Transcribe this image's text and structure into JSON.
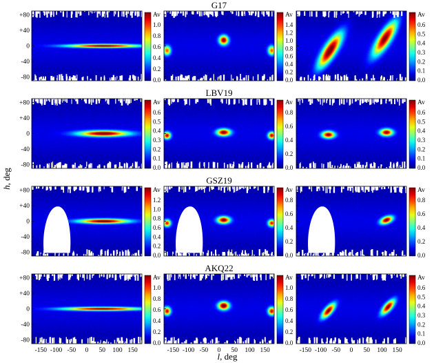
{
  "figure": {
    "ylabel_italic": "h",
    "ylabel_suffix": ", deg",
    "xlabel_italic": "l",
    "xlabel_suffix": ", deg",
    "colorbar_label": "Av"
  },
  "chart_data": [
    {
      "type": "heatmap",
      "title": "G17",
      "xlabel": "l, deg",
      "ylabel": "h, deg",
      "x_ticks": [
        -150,
        -100,
        -50,
        0,
        50,
        100,
        150
      ],
      "y_ticks": [
        80,
        40,
        0,
        -40,
        -80
      ],
      "y_tick_labels": [
        "+80",
        "+40",
        "0",
        "-40",
        "-80"
      ],
      "xlim": [
        -180,
        180
      ],
      "ylim": [
        -90,
        90
      ],
      "columns": 3,
      "colorbars": [
        {
          "label": "Av",
          "min": 0.0,
          "max": 1.0,
          "ticks": [
            "0.0",
            "0.2",
            "0.4",
            "0.6",
            "0.8",
            "1.0"
          ]
        },
        {
          "label": "Av",
          "min": 0.0,
          "max": 1.4,
          "ticks": [
            "0.0",
            "0.2",
            "0.4",
            "0.6",
            "0.8",
            "1.0",
            "1.2",
            "1.4"
          ]
        },
        {
          "label": "Av",
          "min": 0.0,
          "max": 0.6,
          "ticks": [
            "0.0",
            "0.1",
            "0.2",
            "0.3",
            "0.4",
            "0.5",
            "0.6"
          ]
        }
      ],
      "features": [
        [
          {
            "l": 55,
            "b": 0,
            "sl": 80,
            "sb": 3,
            "rot": 0,
            "amp": 0.95
          }
        ],
        [
          {
            "l": 15,
            "b": 15,
            "sl": 10,
            "sb": 8,
            "rot": 0,
            "amp": 1.3
          },
          {
            "l": -170,
            "b": -12,
            "sl": 8,
            "sb": 8,
            "rot": 0,
            "amp": 1.0
          },
          {
            "l": 172,
            "b": -12,
            "sl": 8,
            "sb": 8,
            "rot": 0,
            "amp": 1.0
          }
        ],
        [
          {
            "l": -70,
            "b": -12,
            "sl": 38,
            "sb": 12,
            "rot": 50,
            "amp": 0.58
          },
          {
            "l": 110,
            "b": 20,
            "sl": 38,
            "sb": 12,
            "rot": 50,
            "amp": 0.55
          }
        ]
      ]
    },
    {
      "type": "heatmap",
      "title": "LBV19",
      "xlabel": "l, deg",
      "ylabel": "h, deg",
      "x_ticks": [
        -150,
        -100,
        -50,
        0,
        50,
        100,
        150
      ],
      "y_ticks": [
        80,
        40,
        0,
        -40,
        -80
      ],
      "y_tick_labels": [
        "+80",
        "+40",
        "0",
        "-40",
        "-80"
      ],
      "xlim": [
        -180,
        180
      ],
      "ylim": [
        -90,
        90
      ],
      "columns": 3,
      "colorbars": [
        {
          "label": "Av",
          "min": 0.0,
          "max": 0.6,
          "ticks": [
            "0.0",
            "0.1",
            "0.2",
            "0.3",
            "0.4",
            "0.5",
            "0.6"
          ]
        },
        {
          "label": "Av",
          "min": 0.0,
          "max": 0.8,
          "ticks": [
            "0.0",
            "0.2",
            "0.4",
            "0.6",
            "0.8"
          ]
        },
        {
          "label": "Av",
          "min": 0.0,
          "max": 0.6,
          "ticks": [
            "0.0",
            "0.1",
            "0.2",
            "0.3",
            "0.4",
            "0.5",
            "0.6"
          ]
        }
      ],
      "features": [
        [
          {
            "l": 55,
            "b": 0,
            "sl": 55,
            "sb": 5,
            "rot": 0,
            "amp": 0.58
          }
        ],
        [
          {
            "l": 15,
            "b": 3,
            "sl": 15,
            "sb": 6,
            "rot": 0,
            "amp": 0.75
          },
          {
            "l": -170,
            "b": -5,
            "sl": 8,
            "sb": 6,
            "rot": 0,
            "amp": 0.7
          },
          {
            "l": 172,
            "b": -5,
            "sl": 8,
            "sb": 6,
            "rot": 0,
            "amp": 0.7
          }
        ],
        [
          {
            "l": -75,
            "b": -3,
            "sl": 14,
            "sb": 6,
            "rot": 0,
            "amp": 0.55
          },
          {
            "l": 115,
            "b": 3,
            "sl": 14,
            "sb": 6,
            "rot": 0,
            "amp": 0.55
          }
        ]
      ]
    },
    {
      "type": "heatmap",
      "title": "GSZ19",
      "xlabel": "l, deg",
      "ylabel": "h, deg",
      "x_ticks": [
        -150,
        -100,
        -50,
        0,
        50,
        100,
        150
      ],
      "y_ticks": [
        80,
        40,
        0,
        -40,
        -80
      ],
      "y_tick_labels": [
        "+80",
        "+40",
        "0",
        "-40",
        "-80"
      ],
      "xlim": [
        -180,
        180
      ],
      "ylim": [
        -90,
        90
      ],
      "columns": 3,
      "colorbars": [
        {
          "label": "Av",
          "min": 0.0,
          "max": 1.2,
          "ticks": [
            "0.0",
            "0.2",
            "0.4",
            "0.6",
            "0.8",
            "1.0",
            "1.2"
          ]
        },
        {
          "label": "Av",
          "min": 0.0,
          "max": 0.8,
          "ticks": [
            "0.0",
            "0.2",
            "0.4",
            "0.6",
            "0.8"
          ]
        },
        {
          "label": "Av",
          "min": 0.0,
          "max": 0.8,
          "ticks": [
            "0.0",
            "0.2",
            "0.4",
            "0.6",
            "0.8"
          ]
        }
      ],
      "features": [
        [
          {
            "l": 55,
            "b": 0,
            "sl": 55,
            "sb": 4,
            "rot": 0,
            "amp": 1.15
          }
        ],
        [
          {
            "l": 15,
            "b": 3,
            "sl": 14,
            "sb": 6,
            "rot": 0,
            "amp": 0.75
          },
          {
            "l": -170,
            "b": -5,
            "sl": 8,
            "sb": 6,
            "rot": 0,
            "amp": 0.65
          },
          {
            "l": 172,
            "b": -5,
            "sl": 8,
            "sb": 6,
            "rot": 0,
            "amp": 0.65
          }
        ],
        [
          {
            "l": 115,
            "b": 3,
            "sl": 14,
            "sb": 6,
            "rot": 15,
            "amp": 0.75
          }
        ]
      ]
    },
    {
      "type": "heatmap",
      "title": "AKQ22",
      "xlabel": "l, deg",
      "ylabel": "h, deg",
      "x_ticks": [
        -150,
        -100,
        -50,
        0,
        50,
        100,
        150
      ],
      "y_ticks": [
        80,
        40,
        0,
        -40,
        -80
      ],
      "y_tick_labels": [
        "+80",
        "+40",
        "0",
        "-40",
        "-80"
      ],
      "xlim": [
        -180,
        180
      ],
      "ylim": [
        -90,
        90
      ],
      "columns": 3,
      "colorbars": [
        {
          "label": "Av",
          "min": 0.0,
          "max": 1.0,
          "ticks": [
            "0.0",
            "0.2",
            "0.4",
            "0.6",
            "0.8",
            "1.0"
          ]
        },
        {
          "label": "Av",
          "min": 0.0,
          "max": 1.0,
          "ticks": [
            "0.0",
            "0.2",
            "0.4",
            "0.6",
            "0.8",
            "1.0"
          ]
        },
        {
          "label": "Av",
          "min": 0.0,
          "max": 0.6,
          "ticks": [
            "0.0",
            "0.1",
            "0.2",
            "0.3",
            "0.4",
            "0.5",
            "0.6"
          ]
        }
      ],
      "features": [
        [
          {
            "l": 50,
            "b": 0,
            "sl": 85,
            "sb": 3,
            "rot": 0,
            "amp": 0.95
          }
        ],
        [
          {
            "l": 15,
            "b": 8,
            "sl": 12,
            "sb": 7,
            "rot": 0,
            "amp": 1.0
          },
          {
            "l": -170,
            "b": -6,
            "sl": 8,
            "sb": 7,
            "rot": 0,
            "amp": 0.85
          },
          {
            "l": 172,
            "b": -6,
            "sl": 8,
            "sb": 7,
            "rot": 0,
            "amp": 0.85
          }
        ],
        [
          {
            "l": -75,
            "b": -5,
            "sl": 18,
            "sb": 7,
            "rot": 40,
            "amp": 0.55
          },
          {
            "l": 120,
            "b": 5,
            "sl": 18,
            "sb": 7,
            "rot": 40,
            "amp": 0.55
          }
        ]
      ]
    }
  ]
}
